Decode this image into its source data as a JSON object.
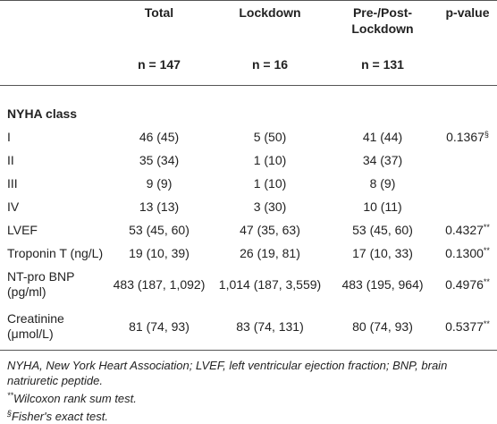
{
  "table": {
    "header": [
      "Total",
      "Lockdown",
      "Pre-/Post-Lockdown",
      "p-value"
    ],
    "n": [
      "n = 147",
      "n = 16",
      "n = 131"
    ],
    "section": "NYHA class",
    "rows": [
      {
        "label": "I",
        "cells": [
          "46 (45)",
          "5 (50)",
          "41 (44)"
        ],
        "p": "0.1367",
        "p_note": "§"
      },
      {
        "label": "II",
        "cells": [
          "35 (34)",
          "1 (10)",
          "34 (37)"
        ]
      },
      {
        "label": "III",
        "cells": [
          "9 (9)",
          "1 (10)",
          "8 (9)"
        ]
      },
      {
        "label": "IV",
        "cells": [
          "13 (13)",
          "3 (30)",
          "10 (11)"
        ]
      },
      {
        "label": "LVEF",
        "cells": [
          "53 (45, 60)",
          "47 (35, 63)",
          "53 (45, 60)"
        ],
        "p": "0.4327",
        "p_note": "**"
      },
      {
        "label": "Troponin T (ng/L)",
        "cells": [
          "19 (10, 39)",
          "26 (19, 81)",
          "17 (10, 33)"
        ],
        "p": "0.1300",
        "p_note": "**"
      },
      {
        "label": "NT-pro BNP (pg/ml)",
        "cells": [
          "483 (187, 1,092)",
          "1,014 (187, 3,559)",
          "483 (195, 964)"
        ],
        "p": "0.4976",
        "p_note": "**"
      },
      {
        "label": "Creatinine (μmol/L)",
        "cells": [
          "81 (74, 93)",
          "83 (74, 131)",
          "80 (74, 93)"
        ],
        "p": "0.5377",
        "p_note": "**"
      }
    ]
  },
  "footnotes": [
    {
      "text": "NYHA, New York Heart Association; LVEF, left ventricular ejection fraction; BNP, brain natriuretic peptide."
    },
    {
      "mark": "**",
      "text": "Wilcoxon rank sum test."
    },
    {
      "mark": "§",
      "text": "Fisher's exact test."
    }
  ]
}
